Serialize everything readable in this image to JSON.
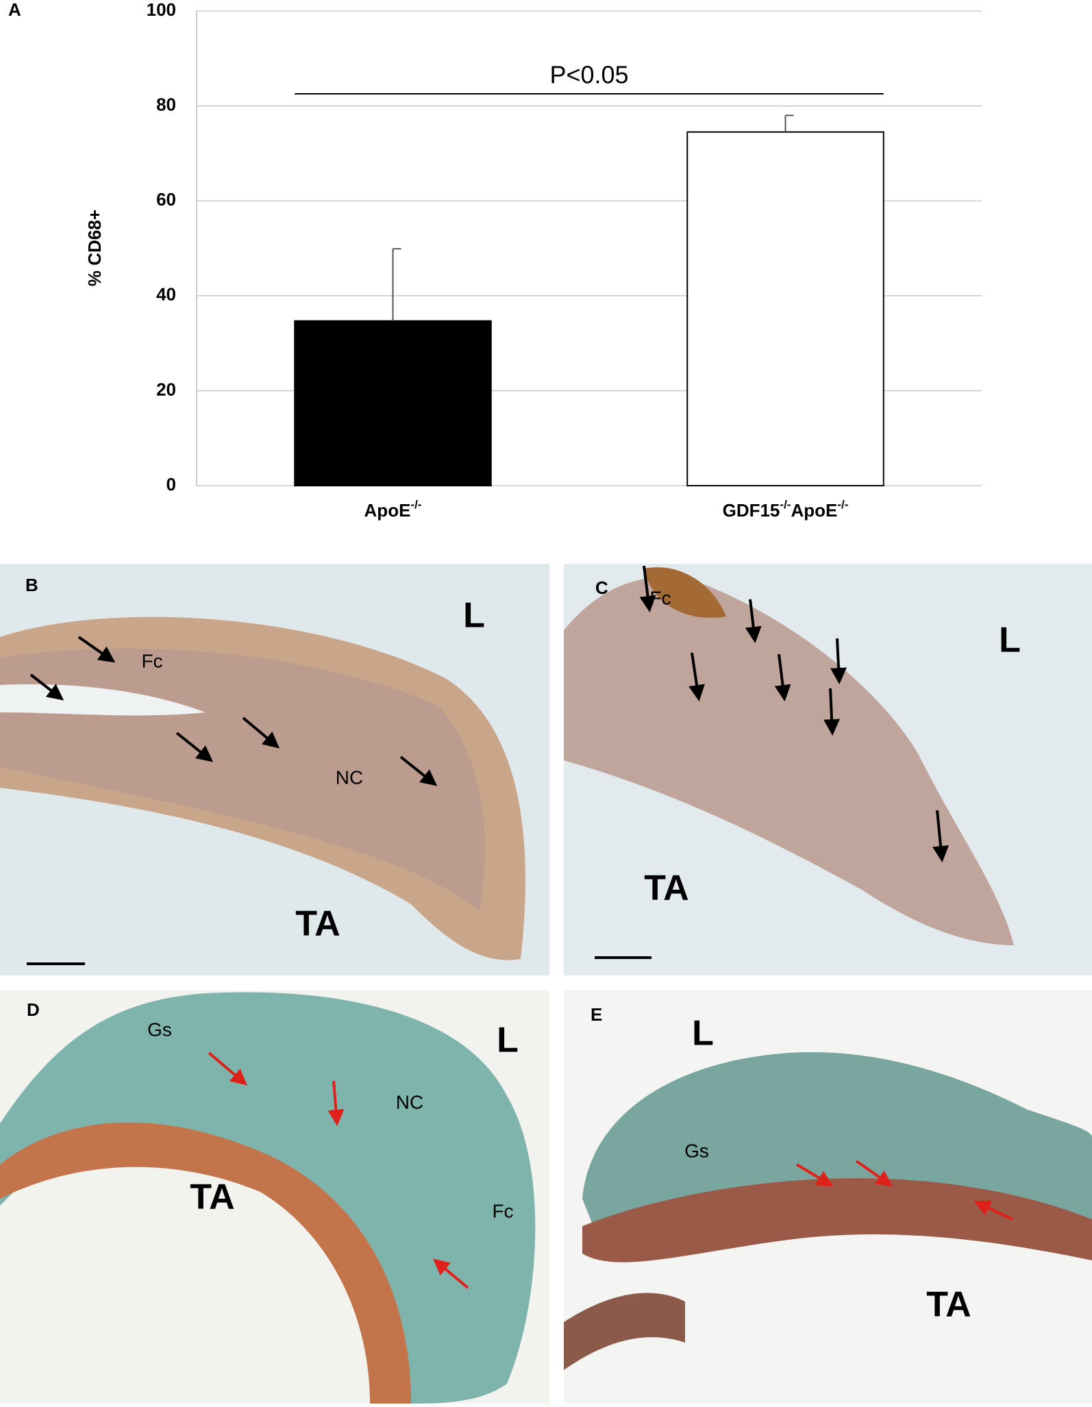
{
  "chart_data": {
    "type": "bar",
    "panel_label": "A",
    "y_label": "% CD68+",
    "categories": [
      "ApoE-/-",
      "GDF15-/-ApoE-/-"
    ],
    "values": [
      34.7,
      74.5
    ],
    "errors": [
      15.2,
      3.5
    ],
    "colors": [
      "#000000",
      "#ffffff"
    ],
    "ylim": [
      0,
      100
    ],
    "yticks": [
      0,
      20,
      40,
      60,
      80,
      100
    ],
    "grid": true,
    "annotation": "P<0.05"
  },
  "panels": [
    {
      "label": "B",
      "texts": [
        "L",
        "Fc",
        "NC",
        "TA"
      ]
    },
    {
      "label": "C",
      "texts": [
        "Fc",
        "L",
        "TA"
      ]
    },
    {
      "label": "D",
      "texts": [
        "Gs",
        "L",
        "NC",
        "TA",
        "Fc"
      ]
    },
    {
      "label": "E",
      "texts": [
        "L",
        "Gs",
        "TA"
      ]
    }
  ]
}
